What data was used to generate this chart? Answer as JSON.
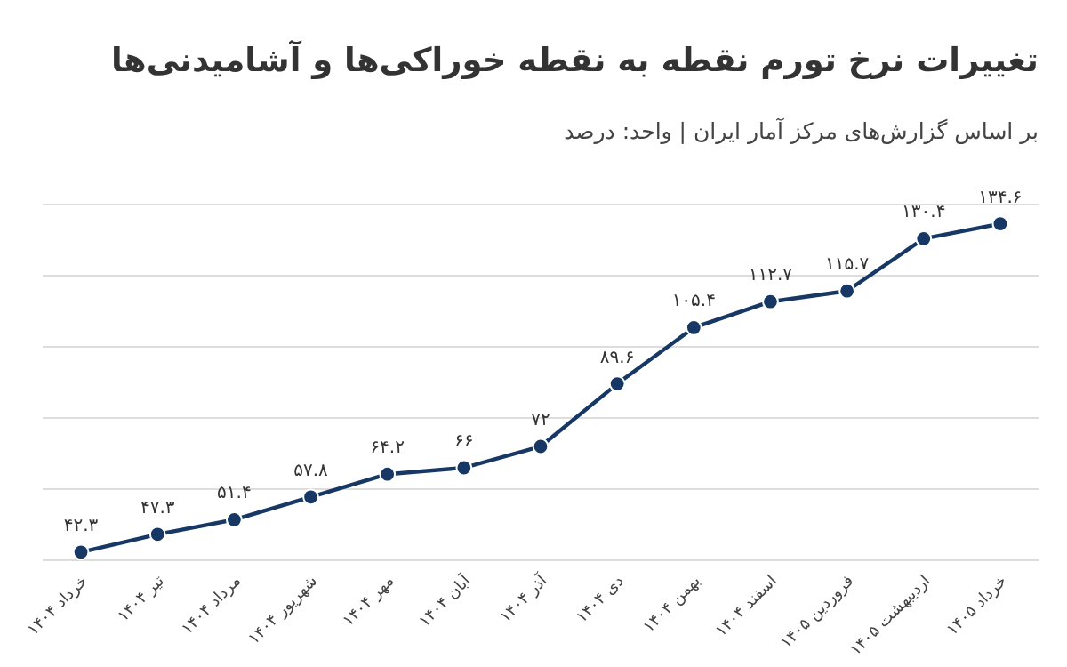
{
  "chart_data": {
    "type": "line",
    "title": "تغییرات نرخ تورم نقطه به نقطه خوراکی‌ها و آشامیدنی‌ها",
    "subtitle": "بر اساس گزارش‌های مرکز آمار ایران | واحد: درصد",
    "categories": [
      "خرداد ۱۴۰۴",
      "تیر ۱۴۰۴",
      "مرداد ۱۴۰۴",
      "شهریور ۱۴۰۴",
      "مهر ۱۴۰۴",
      "آبان ۱۴۰۴",
      "آذر ۱۴۰۴",
      "دی ۱۴۰۴",
      "بهمن ۱۴۰۴",
      "اسفند ۱۴۰۴",
      "فروردین ۱۴۰۵",
      "اردیبهشت ۱۴۰۵",
      "خرداد ۱۴۰۵"
    ],
    "series": [
      {
        "color": "#173765",
        "values": [
          42.3,
          47.3,
          51.4,
          57.8,
          64.2,
          66,
          72,
          89.6,
          105.4,
          112.7,
          115.7,
          130.4,
          134.6
        ],
        "value_labels": [
          "۴۲.۳",
          "۴۷.۳",
          "۵۱.۴",
          "۵۷.۸",
          "۶۴.۲",
          "۶۶",
          "۷۲",
          "۸۹.۶",
          "۱۰۵.۴",
          "۱۱۲.۷",
          "۱۱۵.۷",
          "۱۳۰.۴",
          "۱۳۴.۶"
        ]
      }
    ],
    "ylim": [
      40,
      140
    ],
    "yticks": [
      {
        "value": 40,
        "label": null
      },
      {
        "value": 60,
        "label": null
      },
      {
        "value": 80,
        "label": null
      },
      {
        "value": 100,
        "label": null
      },
      {
        "value": 120,
        "label": null
      },
      {
        "value": 140,
        "label": null
      }
    ],
    "tick_labels": "x",
    "grid": "y",
    "marker": "circle",
    "line_style": "solid"
  }
}
